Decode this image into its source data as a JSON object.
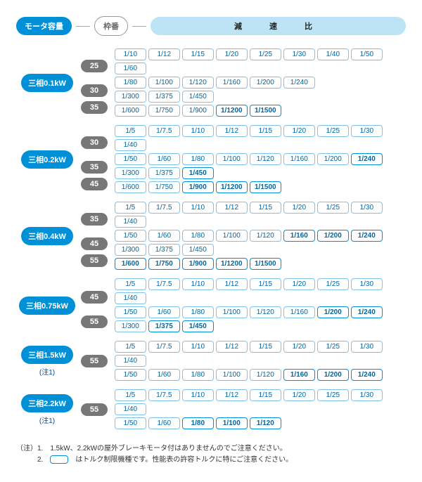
{
  "header": {
    "motor": "モータ容量",
    "frame": "枠番",
    "band": "減　速　比"
  },
  "colors": {
    "blue": "#0090d8",
    "lightblue": "#bce4f5",
    "gray": "#777",
    "border": "#7fc4e8",
    "text": "#0066a1"
  },
  "groups": [
    {
      "motor": "三相0.1kW",
      "note": "",
      "frames": [
        {
          "num": "25",
          "rows": [
            [
              [
                "1/10",
                0
              ],
              [
                "1/12",
                0
              ],
              [
                "1/15",
                0
              ],
              [
                "1/20",
                0
              ],
              [
                "1/25",
                0
              ],
              [
                "1/30",
                0
              ],
              [
                "1/40",
                0
              ],
              [
                "1/50",
                0
              ],
              [
                "1/60",
                0
              ]
            ],
            [
              [
                "1/80",
                0
              ],
              [
                "1/100",
                0
              ],
              [
                "1/120",
                0
              ],
              [
                "1/160",
                0
              ],
              [
                "1/200",
                0
              ],
              [
                "1/240",
                0
              ]
            ]
          ]
        },
        {
          "num": "30",
          "rows": [
            [
              [
                "1/300",
                0
              ],
              [
                "1/375",
                0
              ],
              [
                "1/450",
                0
              ]
            ]
          ]
        },
        {
          "num": "35",
          "rows": [
            [
              [
                "1/600",
                0
              ],
              [
                "1/750",
                0
              ],
              [
                "1/900",
                0
              ],
              [
                "1/1200",
                1
              ],
              [
                "1/1500",
                1
              ]
            ]
          ]
        }
      ]
    },
    {
      "motor": "三相0.2kW",
      "note": "",
      "frames": [
        {
          "num": "30",
          "rows": [
            [
              [
                "1/5",
                0
              ],
              [
                "1/7.5",
                0
              ],
              [
                "1/10",
                0
              ],
              [
                "1/12",
                0
              ],
              [
                "1/15",
                0
              ],
              [
                "1/20",
                0
              ],
              [
                "1/25",
                0
              ],
              [
                "1/30",
                0
              ],
              [
                "1/40",
                0
              ]
            ],
            [
              [
                "1/50",
                0
              ],
              [
                "1/60",
                0
              ],
              [
                "1/80",
                0
              ],
              [
                "1/100",
                0
              ],
              [
                "1/120",
                0
              ],
              [
                "1/160",
                0
              ],
              [
                "1/200",
                0
              ],
              [
                "1/240",
                1
              ]
            ]
          ]
        },
        {
          "num": "35",
          "rows": [
            [
              [
                "1/300",
                0
              ],
              [
                "1/375",
                0
              ],
              [
                "1/450",
                1
              ]
            ]
          ]
        },
        {
          "num": "45",
          "rows": [
            [
              [
                "1/600",
                0
              ],
              [
                "1/750",
                0
              ],
              [
                "1/900",
                1
              ],
              [
                "1/1200",
                1
              ],
              [
                "1/1500",
                1
              ]
            ]
          ]
        }
      ]
    },
    {
      "motor": "三相0.4kW",
      "note": "",
      "frames": [
        {
          "num": "35",
          "rows": [
            [
              [
                "1/5",
                0
              ],
              [
                "1/7.5",
                0
              ],
              [
                "1/10",
                0
              ],
              [
                "1/12",
                0
              ],
              [
                "1/15",
                0
              ],
              [
                "1/20",
                0
              ],
              [
                "1/25",
                0
              ],
              [
                "1/30",
                0
              ],
              [
                "1/40",
                0
              ]
            ],
            [
              [
                "1/50",
                0
              ],
              [
                "1/60",
                0
              ],
              [
                "1/80",
                0
              ],
              [
                "1/100",
                0
              ],
              [
                "1/120",
                0
              ],
              [
                "1/160",
                1
              ],
              [
                "1/200",
                1
              ],
              [
                "1/240",
                1
              ]
            ]
          ]
        },
        {
          "num": "45",
          "rows": [
            [
              [
                "1/300",
                0
              ],
              [
                "1/375",
                0
              ],
              [
                "1/450",
                0
              ]
            ]
          ]
        },
        {
          "num": "55",
          "rows": [
            [
              [
                "1/600",
                1
              ],
              [
                "1/750",
                1
              ],
              [
                "1/900",
                1
              ],
              [
                "1/1200",
                1
              ],
              [
                "1/1500",
                1
              ]
            ]
          ]
        }
      ]
    },
    {
      "motor": "三相0.75kW",
      "note": "",
      "frames": [
        {
          "num": "45",
          "rows": [
            [
              [
                "1/5",
                0
              ],
              [
                "1/7.5",
                0
              ],
              [
                "1/10",
                0
              ],
              [
                "1/12",
                0
              ],
              [
                "1/15",
                0
              ],
              [
                "1/20",
                0
              ],
              [
                "1/25",
                0
              ],
              [
                "1/30",
                0
              ],
              [
                "1/40",
                0
              ]
            ],
            [
              [
                "1/50",
                0
              ],
              [
                "1/60",
                0
              ],
              [
                "1/80",
                0
              ],
              [
                "1/100",
                0
              ],
              [
                "1/120",
                0
              ],
              [
                "1/160",
                0
              ],
              [
                "1/200",
                1
              ],
              [
                "1/240",
                1
              ]
            ]
          ]
        },
        {
          "num": "55",
          "rows": [
            [
              [
                "1/300",
                0
              ],
              [
                "1/375",
                1
              ],
              [
                "1/450",
                1
              ]
            ]
          ]
        }
      ]
    },
    {
      "motor": "三相1.5kW",
      "note": "(注1)",
      "frames": [
        {
          "num": "55",
          "rows": [
            [
              [
                "1/5",
                0
              ],
              [
                "1/7.5",
                0
              ],
              [
                "1/10",
                0
              ],
              [
                "1/12",
                0
              ],
              [
                "1/15",
                0
              ],
              [
                "1/20",
                0
              ],
              [
                "1/25",
                0
              ],
              [
                "1/30",
                0
              ],
              [
                "1/40",
                0
              ]
            ],
            [
              [
                "1/50",
                0
              ],
              [
                "1/60",
                0
              ],
              [
                "1/80",
                0
              ],
              [
                "1/100",
                0
              ],
              [
                "1/120",
                0
              ],
              [
                "1/160",
                1
              ],
              [
                "1/200",
                1
              ],
              [
                "1/240",
                1
              ]
            ]
          ]
        }
      ]
    },
    {
      "motor": "三相2.2kW",
      "note": "(注1)",
      "frames": [
        {
          "num": "55",
          "rows": [
            [
              [
                "1/5",
                0
              ],
              [
                "1/7.5",
                0
              ],
              [
                "1/10",
                0
              ],
              [
                "1/12",
                0
              ],
              [
                "1/15",
                0
              ],
              [
                "1/20",
                0
              ],
              [
                "1/25",
                0
              ],
              [
                "1/30",
                0
              ],
              [
                "1/40",
                0
              ]
            ],
            [
              [
                "1/50",
                0
              ],
              [
                "1/60",
                0
              ],
              [
                "1/80",
                1
              ],
              [
                "1/100",
                1
              ],
              [
                "1/120",
                1
              ]
            ]
          ]
        }
      ]
    }
  ],
  "footer": {
    "l1": "（注）1.　1.5kW、2.2kWの屋外ブレーキモータ付はありませんのでご注意ください。",
    "l2_a": "　　　2.　",
    "l2_b": "　はトルク制限機種です。性能表の許容トルクに特にご注意ください。"
  }
}
